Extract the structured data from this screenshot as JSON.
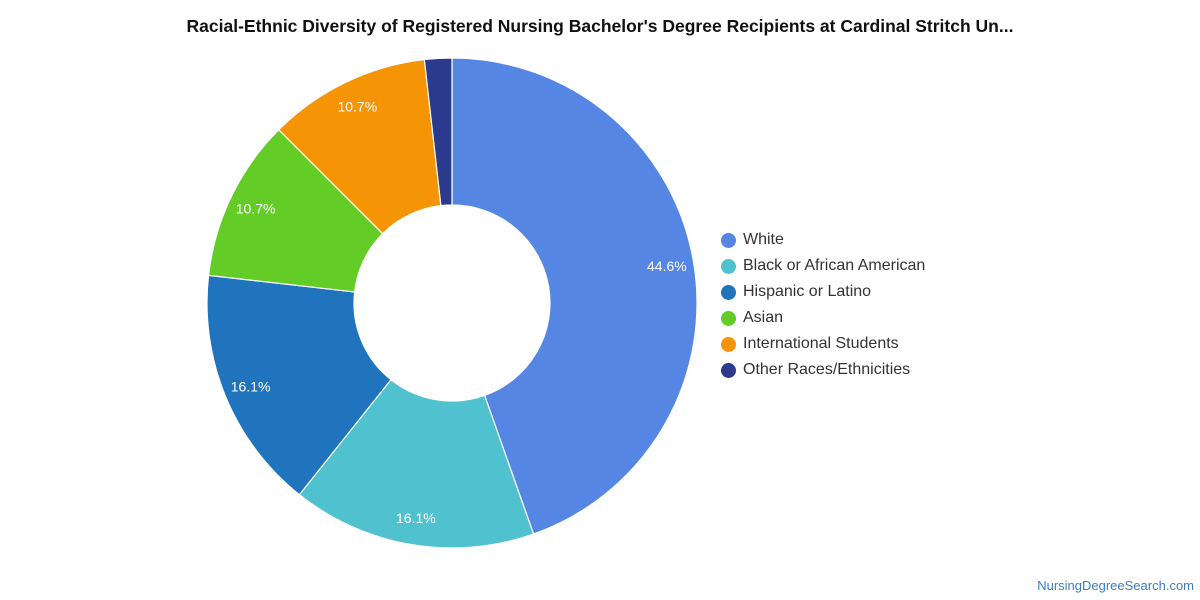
{
  "chart_data": {
    "type": "pie",
    "title": "Racial-Ethnic Diversity of Registered Nursing Bachelor's Degree Recipients at Cardinal Stritch Un...",
    "donut": true,
    "legend_position": "right",
    "categories": [
      "White",
      "Black or African American",
      "Hispanic or Latino",
      "Asian",
      "International Students",
      "Other Races/Ethnicities"
    ],
    "values": [
      44.6,
      16.1,
      16.1,
      10.7,
      10.7,
      1.8
    ],
    "value_labels": [
      "44.6%",
      "16.1%",
      "16.1%",
      "10.7%",
      "10.7%",
      ""
    ],
    "colors": [
      "#5586e3",
      "#50c1cf",
      "#1f74bd",
      "#63cc27",
      "#f59505",
      "#2b3a8c"
    ]
  },
  "watermark": "NursingDegreeSearch.com"
}
